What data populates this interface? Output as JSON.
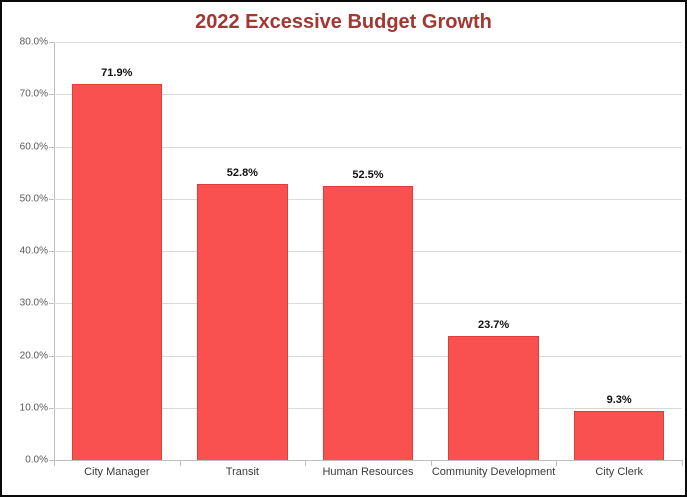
{
  "chart_data": {
    "type": "bar",
    "title": "2022 Excessive Budget Growth",
    "categories": [
      "City Manager",
      "Transit",
      "Human Resources",
      "Community Development",
      "City Clerk"
    ],
    "values": [
      71.9,
      52.8,
      52.5,
      23.7,
      9.3
    ],
    "value_labels": [
      "71.9%",
      "52.8%",
      "52.5%",
      "23.7%",
      "9.3%"
    ],
    "xlabel": "",
    "ylabel": "",
    "ylim": [
      0,
      80
    ],
    "ytick_step": 10,
    "ytick_labels": [
      "0.0%",
      "10.0%",
      "20.0%",
      "30.0%",
      "40.0%",
      "50.0%",
      "60.0%",
      "70.0%",
      "80.0%"
    ],
    "grid": "horizontal",
    "legend": "none",
    "colors": {
      "bar_fill": "#f8514f",
      "bar_border": "#e23c3a",
      "title": "#a13832",
      "gridline": "#d9d9d9",
      "axis_line": "#bfbfbf",
      "ytick_text": "#595959",
      "xtick_text": "#3b3b3b",
      "value_label_text": "#111111",
      "frame_border": "#0a0a0a",
      "background": "#ffffff"
    }
  }
}
